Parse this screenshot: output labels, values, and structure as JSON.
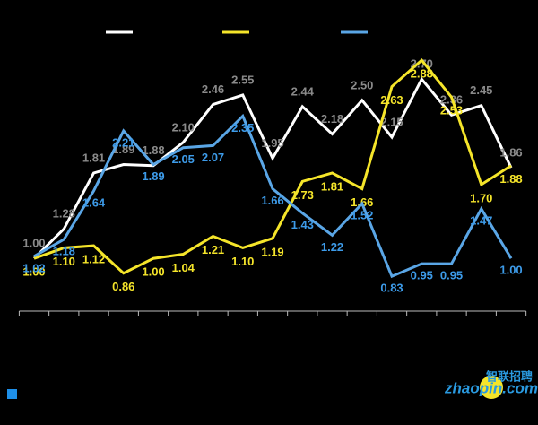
{
  "chart_data": {
    "type": "line",
    "categories": [
      null,
      null,
      null,
      null,
      null,
      null,
      null,
      null,
      null,
      null,
      null,
      null,
      null,
      null,
      null,
      null,
      null
    ],
    "series": [
      {
        "color": "#ffffff",
        "label_color": "#8a8a8a",
        "values": [
          1.0,
          1.28,
          1.81,
          1.89,
          1.88,
          2.1,
          2.46,
          2.55,
          1.95,
          2.44,
          2.18,
          2.5,
          2.15,
          2.7,
          2.36,
          2.45,
          1.86
        ]
      },
      {
        "color": "#f5e52a",
        "label_color": "#f5e52a",
        "values": [
          1.0,
          1.1,
          1.12,
          0.86,
          1.0,
          1.04,
          1.21,
          1.1,
          1.19,
          1.73,
          1.81,
          1.66,
          2.63,
          2.88,
          2.53,
          1.7,
          1.88
        ]
      },
      {
        "color": "#5aa6e6",
        "label_color": "#3d9be9",
        "values": [
          1.02,
          1.18,
          1.64,
          2.21,
          1.89,
          2.05,
          2.07,
          2.35,
          1.66,
          1.43,
          1.22,
          1.52,
          0.83,
          0.95,
          0.95,
          1.47,
          1.0
        ]
      }
    ],
    "value_labels": [
      [
        "1.00",
        "1.28",
        "1.81",
        "1.89",
        "1.88",
        "2.10",
        "2.46",
        "2.55",
        "1.95",
        "2.44",
        "2.18",
        "2.50",
        "2.15",
        "2.70",
        "2.36",
        "2.45",
        "1.86"
      ],
      [
        "1.00",
        "1.10",
        "1.12",
        "0.86",
        "1.00",
        "1.04",
        "1.21",
        "1.10",
        "1.19",
        "1.73",
        "1.81",
        "1.66",
        "2.63",
        "2.88",
        "2.53",
        "1.70",
        "1.88"
      ],
      [
        "1.02",
        "1.18",
        "1.64",
        "2.21",
        "1.89",
        "2.05",
        "2.07",
        "2.35",
        "1.66",
        "1.43",
        "1.22",
        "1.52",
        "0.83",
        "0.95",
        "0.95",
        "1.47",
        "1.00"
      ]
    ],
    "ylim": [
      0.5,
      3.4
    ],
    "background": "#000000"
  },
  "watermark": {
    "brand": "智联招聘",
    "site": "zhaopin.com"
  }
}
